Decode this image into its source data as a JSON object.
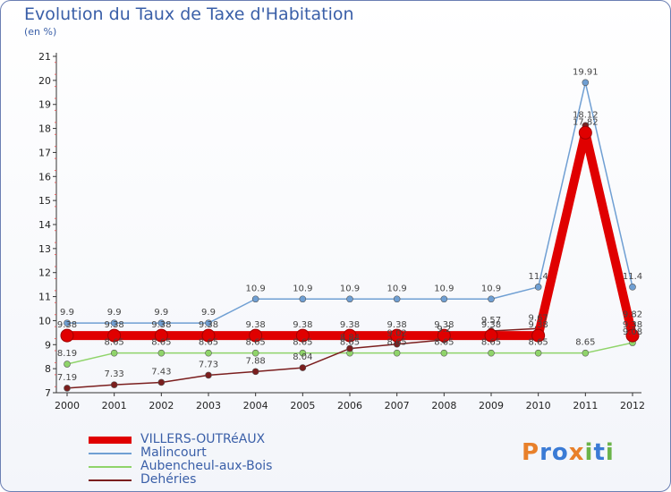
{
  "header": {
    "title": "Evolution du Taux de Taxe d'Habitation",
    "subtitle": "(en %)"
  },
  "logo": {
    "text": "Proxiti",
    "letters": [
      "P",
      "r",
      "o",
      "x",
      "i",
      "t",
      "i"
    ],
    "colors": [
      "#e8802a",
      "#3a7bd5",
      "#3a7bd5",
      "#e8802a",
      "#6bb34a",
      "#3a7bd5",
      "#6bb34a"
    ]
  },
  "chart_data": {
    "type": "line",
    "title": "Evolution du Taux de Taxe d'Habitation",
    "ylabel": "(en %)",
    "xlabel": "",
    "ylim": [
      7,
      21
    ],
    "yticks": [
      7,
      8,
      9,
      10,
      11,
      12,
      13,
      14,
      15,
      16,
      17,
      18,
      19,
      20,
      21
    ],
    "categories": [
      "2000",
      "2001",
      "2002",
      "2003",
      "2004",
      "2005",
      "2006",
      "2007",
      "2008",
      "2009",
      "2010",
      "2011",
      "2012"
    ],
    "grid": false,
    "legend_position": "bottom-left",
    "series": [
      {
        "name": "VILLERS-OUTRéAUX",
        "color": "#e00000",
        "style": "thick",
        "values": [
          9.38,
          9.38,
          9.38,
          9.38,
          9.38,
          9.38,
          9.38,
          9.38,
          9.38,
          9.38,
          9.38,
          17.82,
          9.38
        ],
        "labels": [
          "9.38",
          "9.38",
          "9.38",
          "9.38",
          "9.38",
          "9.38",
          "9.38",
          "9.38",
          "9.38",
          "9.38",
          "9.38",
          "17.82",
          "9.38"
        ]
      },
      {
        "name": "Malincourt",
        "color": "#6f9fd3",
        "style": "thin",
        "values": [
          9.9,
          9.9,
          9.9,
          9.9,
          10.9,
          10.9,
          10.9,
          10.9,
          10.9,
          10.9,
          11.4,
          19.91,
          11.4
        ],
        "labels": [
          "9.9",
          "9.9",
          "9.9",
          "9.9",
          "10.9",
          "10.9",
          "10.9",
          "10.9",
          "10.9",
          "10.9",
          "11.4",
          "19.91",
          "11.4"
        ]
      },
      {
        "name": "Aubencheul-aux-Bois",
        "color": "#8fd46a",
        "style": "thin",
        "values": [
          8.19,
          8.65,
          8.65,
          8.65,
          8.65,
          8.65,
          8.65,
          8.65,
          8.65,
          8.65,
          8.65,
          8.65,
          9.08
        ],
        "labels": [
          "8.19",
          "8.65",
          "8.65",
          "8.65",
          "8.65",
          "8.65",
          "8.65",
          "8.65",
          "8.65",
          "8.65",
          "8.65",
          "8.65",
          "9.08"
        ]
      },
      {
        "name": "Dehéries",
        "color": "#7b1e1e",
        "style": "thin",
        "values": [
          7.19,
          7.33,
          7.43,
          7.73,
          7.88,
          8.04,
          8.84,
          9.02,
          9.2,
          9.57,
          9.67,
          18.12,
          9.82
        ],
        "labels": [
          "7.19",
          "7.33",
          "7.43",
          "7.73",
          "7.88",
          "8.04",
          "8.84",
          "9.02",
          "9.2",
          "9.57",
          "9.67",
          "18.12",
          "9.82"
        ]
      }
    ]
  }
}
